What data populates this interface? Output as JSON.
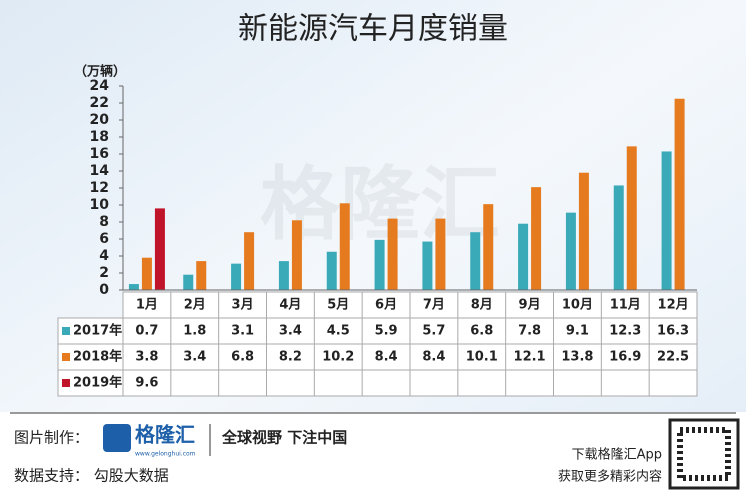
{
  "chart_data": {
    "type": "bar",
    "title": "新能源汽车月度销量",
    "y_unit": "（万辆）",
    "categories": [
      "1月",
      "2月",
      "3月",
      "4月",
      "5月",
      "6月",
      "7月",
      "8月",
      "9月",
      "10月",
      "11月",
      "12月"
    ],
    "series": [
      {
        "name": "2017年",
        "color": "#3aaab8",
        "values": [
          0.7,
          1.8,
          3.1,
          3.4,
          4.5,
          5.9,
          5.7,
          6.8,
          7.8,
          9.1,
          12.3,
          16.3
        ]
      },
      {
        "name": "2018年",
        "color": "#e67a1e",
        "values": [
          3.8,
          3.4,
          6.8,
          8.2,
          10.2,
          8.4,
          8.4,
          10.1,
          12.1,
          13.8,
          16.9,
          22.5
        ]
      },
      {
        "name": "2019年",
        "color": "#c0142a",
        "values": [
          9.6,
          null,
          null,
          null,
          null,
          null,
          null,
          null,
          null,
          null,
          null,
          null
        ]
      }
    ],
    "ylim": [
      0,
      24
    ],
    "yticks": [
      0,
      2,
      4,
      6,
      8,
      10,
      12,
      14,
      16,
      18,
      20,
      22,
      24
    ],
    "watermark": "格隆汇"
  },
  "footer": {
    "made_by": "图片制作：",
    "logo": "格隆汇",
    "logo_url": "www.gelonghui.com",
    "slogan": "全球视野 下注中国",
    "data_source": "数据支持： 勾股大数据",
    "app_line1": "下载格隆汇App",
    "app_line2": "获取更多精彩内容"
  }
}
